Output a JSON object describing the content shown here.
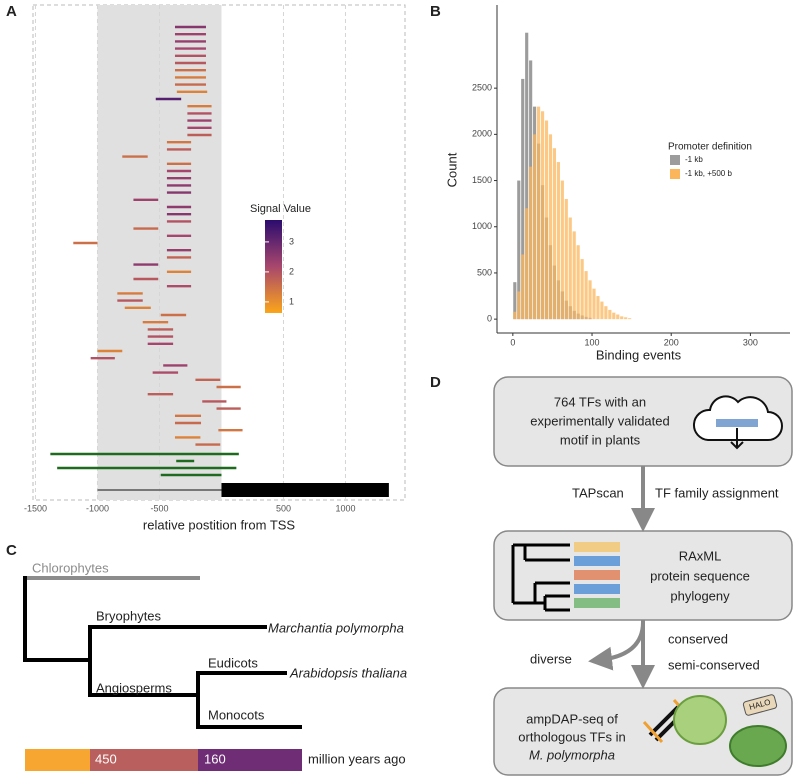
{
  "panel_labels": [
    "A",
    "B",
    "C",
    "D"
  ],
  "chart_data": [
    {
      "type": "segments",
      "xlabel": "relative postition from TSS",
      "xlim": [
        -1520,
        1480
      ],
      "xticks": [
        -1500,
        -1000,
        -500,
        500,
        1000
      ],
      "grid": true,
      "promoter": [
        -1000,
        0
      ],
      "gene_body": [
        0,
        1350
      ],
      "segments": {
        "start": [
          -375,
          -375,
          -375,
          -375,
          -375,
          -375,
          -375,
          -375,
          -375,
          -360,
          -530,
          -275,
          -275,
          -275,
          -275,
          -275,
          -440,
          -440,
          -800,
          -440,
          -440,
          -440,
          -440,
          -440,
          -710,
          -440,
          -440,
          -440,
          -710,
          -440,
          -1195,
          -440,
          -440,
          -710,
          -440,
          -710,
          -440,
          -840,
          -840,
          -780,
          -490,
          -635,
          -595,
          -595,
          -595,
          -1000,
          -1055,
          -470,
          -555,
          -210,
          -40,
          -595,
          -155,
          -40,
          -375,
          -375,
          -25,
          -375,
          -210
        ],
        "end": [
          -125,
          -125,
          -125,
          -125,
          -125,
          -125,
          -125,
          -125,
          -125,
          -115,
          -325,
          -80,
          -80,
          -80,
          -80,
          -80,
          -245,
          -245,
          -595,
          -245,
          -245,
          -245,
          -245,
          -245,
          -510,
          -245,
          -245,
          -245,
          -510,
          -245,
          -1000,
          -245,
          -245,
          -510,
          -245,
          -510,
          -245,
          -635,
          -635,
          -570,
          -285,
          -430,
          -390,
          -390,
          -390,
          -800,
          -860,
          -275,
          -350,
          -10,
          155,
          -390,
          40,
          155,
          -165,
          -165,
          170,
          -170,
          -10
        ],
        "signal": [
          2.6,
          2.3,
          2.4,
          2.2,
          2.0,
          1.9,
          1.5,
          1.3,
          1.6,
          1.2,
          3.2,
          1.3,
          2.0,
          2.3,
          2.2,
          1.8,
          1.4,
          1.8,
          1.5,
          1.5,
          2.2,
          2.4,
          2.5,
          2.6,
          2.3,
          2.5,
          2.6,
          2.0,
          1.6,
          2.2,
          1.5,
          2.4,
          1.7,
          2.5,
          1.2,
          1.9,
          2.1,
          1.3,
          1.9,
          1.2,
          1.5,
          1.3,
          1.8,
          2.0,
          2.2,
          1.2,
          2.0,
          2.3,
          2.1,
          1.7,
          1.5,
          1.8,
          1.9,
          1.8,
          1.4,
          1.6,
          1.4,
          1.2,
          1.6
        ]
      },
      "other_segments": {
        "color": "#1e6a1e",
        "start": [
          -1380,
          -365,
          -1325,
          -490
        ],
        "end": [
          140,
          -220,
          120,
          0
        ]
      },
      "colorbar": {
        "title": "Signal Value",
        "lim": [
          0.63,
          3.73
        ],
        "ticks": [
          1,
          2,
          3
        ],
        "colors": [
          "#fba51a",
          "#a8476d",
          "#2b0c6e"
        ]
      }
    },
    {
      "type": "histogram",
      "xlabel": "Binding events",
      "ylabel": "Count",
      "xlim": [
        -20,
        350
      ],
      "ylim": [
        -150,
        3400
      ],
      "xticks": [
        0,
        100,
        200,
        300
      ],
      "yticks": [
        0,
        500,
        1000,
        1500,
        2000,
        2500
      ],
      "grid": false,
      "legend_title": "Promoter definition",
      "series": [
        {
          "name": "-1 kb",
          "color": "#9c9c9c",
          "bins": [
            0,
            5,
            10,
            15,
            20,
            25,
            30,
            35,
            40,
            45,
            50,
            55,
            60,
            65,
            70,
            75,
            80,
            85,
            90,
            95,
            100
          ],
          "counts": [
            400,
            1500,
            2600,
            3100,
            2800,
            2300,
            1900,
            1450,
            1100,
            800,
            580,
            420,
            300,
            200,
            140,
            90,
            60,
            40,
            25,
            15
          ]
        },
        {
          "name": "-1 kb, +500 b",
          "color": "#fbb55a",
          "bins": [
            0,
            5,
            10,
            15,
            20,
            25,
            30,
            35,
            40,
            45,
            50,
            55,
            60,
            65,
            70,
            75,
            80,
            85,
            90,
            95,
            100,
            105,
            110,
            115,
            120,
            125,
            130,
            135,
            140,
            145,
            150
          ],
          "counts": [
            80,
            300,
            700,
            1200,
            1650,
            2000,
            2300,
            2250,
            2150,
            2000,
            1850,
            1700,
            1500,
            1300,
            1100,
            950,
            800,
            650,
            520,
            420,
            330,
            250,
            190,
            140,
            100,
            70,
            50,
            30,
            20,
            10
          ]
        }
      ]
    }
  ],
  "tree": {
    "groups": [
      "Chlorophytes",
      "Bryophytes",
      "Angiosperms",
      "Eudicots",
      "Monocots"
    ],
    "species": [
      "Marchantia polymorpha",
      "Arabidopsis thaliana"
    ],
    "timescale": {
      "ages": [
        450,
        160
      ],
      "unit": "million years ago"
    }
  },
  "flowchart": {
    "boxes": [
      [
        "764 TFs with an",
        "experimentally validated",
        "motif in plants"
      ],
      [
        "RAxML",
        "protein sequence",
        "phylogeny"
      ],
      [
        "ampDAP-seq of",
        "orthologous TFs in",
        "M. polymorpha"
      ]
    ],
    "edge_labels": [
      "TAPscan",
      "TF family assignment",
      "conserved",
      "semi-conserved",
      "diverse"
    ],
    "tag": "HALO"
  }
}
